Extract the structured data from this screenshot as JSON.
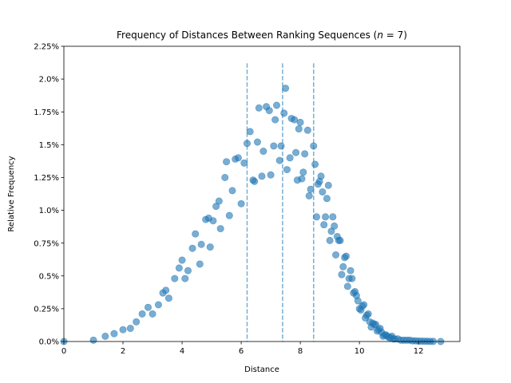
{
  "chart_data": {
    "type": "scatter",
    "title_text": "Frequency of Distances Between Ranking Sequences (",
    "title_var": "n",
    "title_rest": " = 7)",
    "xlabel": "Distance",
    "ylabel": "Relative Frequency",
    "xlim": [
      0,
      13.4
    ],
    "ylim": [
      0,
      2.25
    ],
    "x_ticks": [
      0,
      2,
      4,
      6,
      8,
      10,
      12
    ],
    "y_ticks": [
      {
        "value": 0,
        "label": "0.0%"
      },
      {
        "value": 0.25,
        "label": "0.25%"
      },
      {
        "value": 0.5,
        "label": "0.5%"
      },
      {
        "value": 0.75,
        "label": "0.75%"
      },
      {
        "value": 1.0,
        "label": "1.0%"
      },
      {
        "value": 1.25,
        "label": "1.25%"
      },
      {
        "value": 1.5,
        "label": "1.5%"
      },
      {
        "value": 1.75,
        "label": "1.75%"
      },
      {
        "value": 2.0,
        "label": "2.0%"
      },
      {
        "value": 2.25,
        "label": "2.25%"
      }
    ],
    "vlines": [
      6.2,
      7.4,
      8.45
    ],
    "grid": false,
    "point_color": "#1f77b4",
    "points": [
      [
        0.0,
        0.0
      ],
      [
        1.0,
        0.01
      ],
      [
        1.4,
        0.04
      ],
      [
        1.7,
        0.06
      ],
      [
        2.0,
        0.09
      ],
      [
        2.25,
        0.1
      ],
      [
        2.45,
        0.15
      ],
      [
        2.65,
        0.21
      ],
      [
        2.85,
        0.26
      ],
      [
        3.0,
        0.21
      ],
      [
        3.2,
        0.28
      ],
      [
        3.35,
        0.37
      ],
      [
        3.45,
        0.39
      ],
      [
        3.55,
        0.33
      ],
      [
        3.75,
        0.48
      ],
      [
        3.9,
        0.56
      ],
      [
        4.0,
        0.62
      ],
      [
        4.1,
        0.48
      ],
      [
        4.2,
        0.54
      ],
      [
        4.35,
        0.71
      ],
      [
        4.45,
        0.82
      ],
      [
        4.6,
        0.59
      ],
      [
        4.65,
        0.74
      ],
      [
        4.8,
        0.93
      ],
      [
        4.9,
        0.94
      ],
      [
        4.95,
        0.72
      ],
      [
        5.05,
        0.92
      ],
      [
        5.15,
        1.03
      ],
      [
        5.25,
        1.07
      ],
      [
        5.3,
        0.86
      ],
      [
        5.45,
        1.25
      ],
      [
        5.5,
        1.37
      ],
      [
        5.6,
        0.96
      ],
      [
        5.7,
        1.15
      ],
      [
        5.8,
        1.39
      ],
      [
        5.9,
        1.4
      ],
      [
        6.0,
        1.05
      ],
      [
        6.1,
        1.36
      ],
      [
        6.2,
        1.51
      ],
      [
        6.3,
        1.6
      ],
      [
        6.4,
        1.23
      ],
      [
        6.45,
        1.22
      ],
      [
        6.55,
        1.52
      ],
      [
        6.6,
        1.78
      ],
      [
        6.7,
        1.26
      ],
      [
        6.75,
        1.45
      ],
      [
        6.85,
        1.79
      ],
      [
        6.95,
        1.76
      ],
      [
        7.0,
        1.27
      ],
      [
        7.1,
        1.49
      ],
      [
        7.15,
        1.69
      ],
      [
        7.2,
        1.8
      ],
      [
        7.3,
        1.38
      ],
      [
        7.35,
        1.49
      ],
      [
        7.45,
        1.74
      ],
      [
        7.5,
        1.93
      ],
      [
        7.55,
        1.31
      ],
      [
        7.65,
        1.4
      ],
      [
        7.7,
        1.7
      ],
      [
        7.8,
        1.69
      ],
      [
        7.85,
        1.44
      ],
      [
        7.9,
        1.23
      ],
      [
        7.95,
        1.62
      ],
      [
        8.0,
        1.67
      ],
      [
        8.05,
        1.24
      ],
      [
        8.1,
        1.29
      ],
      [
        8.15,
        1.43
      ],
      [
        8.25,
        1.61
      ],
      [
        8.3,
        1.11
      ],
      [
        8.35,
        1.16
      ],
      [
        8.45,
        1.49
      ],
      [
        8.5,
        1.35
      ],
      [
        8.55,
        0.95
      ],
      [
        8.6,
        1.2
      ],
      [
        8.65,
        1.22
      ],
      [
        8.7,
        1.26
      ],
      [
        8.75,
        1.14
      ],
      [
        8.8,
        0.89
      ],
      [
        8.85,
        0.95
      ],
      [
        8.9,
        1.09
      ],
      [
        8.95,
        1.19
      ],
      [
        9.0,
        0.77
      ],
      [
        9.05,
        0.84
      ],
      [
        9.1,
        0.95
      ],
      [
        9.15,
        0.88
      ],
      [
        9.2,
        0.66
      ],
      [
        9.25,
        0.8
      ],
      [
        9.3,
        0.77
      ],
      [
        9.35,
        0.77
      ],
      [
        9.4,
        0.51
      ],
      [
        9.45,
        0.57
      ],
      [
        9.5,
        0.64
      ],
      [
        9.55,
        0.65
      ],
      [
        9.6,
        0.42
      ],
      [
        9.65,
        0.48
      ],
      [
        9.7,
        0.54
      ],
      [
        9.75,
        0.48
      ],
      [
        9.8,
        0.37
      ],
      [
        9.85,
        0.38
      ],
      [
        9.9,
        0.35
      ],
      [
        9.95,
        0.31
      ],
      [
        10.0,
        0.25
      ],
      [
        10.05,
        0.24
      ],
      [
        10.1,
        0.27
      ],
      [
        10.15,
        0.28
      ],
      [
        10.2,
        0.18
      ],
      [
        10.25,
        0.2
      ],
      [
        10.3,
        0.21
      ],
      [
        10.35,
        0.15
      ],
      [
        10.4,
        0.11
      ],
      [
        10.45,
        0.14
      ],
      [
        10.5,
        0.13
      ],
      [
        10.55,
        0.13
      ],
      [
        10.6,
        0.08
      ],
      [
        10.65,
        0.09
      ],
      [
        10.7,
        0.1
      ],
      [
        10.75,
        0.07
      ],
      [
        10.8,
        0.04
      ],
      [
        10.85,
        0.05
      ],
      [
        10.9,
        0.05
      ],
      [
        10.95,
        0.04
      ],
      [
        11.0,
        0.03
      ],
      [
        11.05,
        0.03
      ],
      [
        11.1,
        0.04
      ],
      [
        11.15,
        0.02
      ],
      [
        11.2,
        0.02
      ],
      [
        11.3,
        0.02
      ],
      [
        11.4,
        0.01
      ],
      [
        11.5,
        0.01
      ],
      [
        11.6,
        0.01
      ],
      [
        11.7,
        0.01
      ],
      [
        11.8,
        0.005
      ],
      [
        11.9,
        0.005
      ],
      [
        12.0,
        0.003
      ],
      [
        12.1,
        0.003
      ],
      [
        12.2,
        0.002
      ],
      [
        12.3,
        0.002
      ],
      [
        12.4,
        0.001
      ],
      [
        12.5,
        0.001
      ],
      [
        12.75,
        0.0
      ]
    ]
  }
}
